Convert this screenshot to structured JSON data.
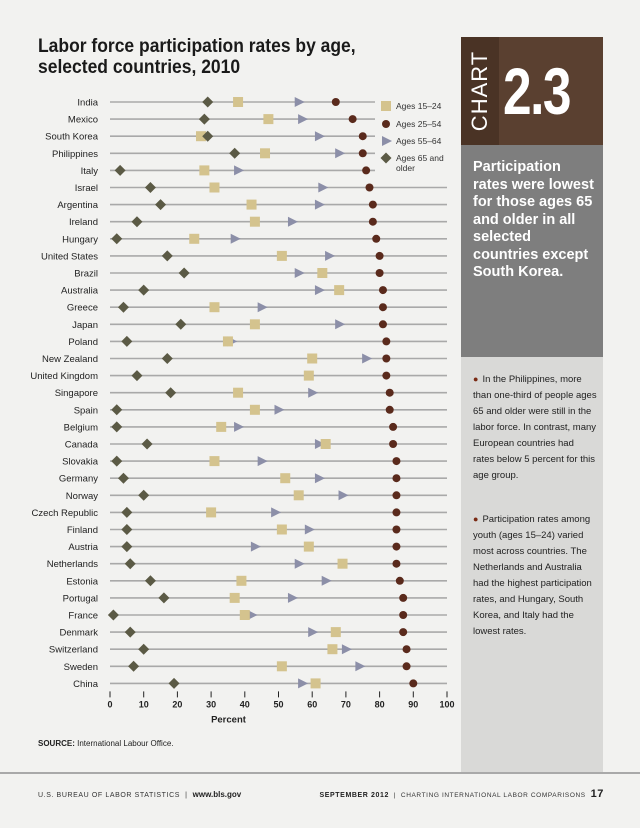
{
  "title": "Labor force participation rates by age, selected countries, 2010",
  "source_label": "SOURCE:",
  "source_text": "International Labour Office.",
  "badge": {
    "word": "CHART",
    "number": "2.3"
  },
  "headline": "Participation rates were lowest for those ages 65 and older in all selected countries except South Korea.",
  "bullets": [
    "In the Philippines, more than one-third of people ages 65 and older were still in the labor force. In contrast, many European countries had rates below 5 percent for this age group.",
    "Participation rates among youth (ages 15–24) varied most across countries. The Netherlands and Australia had the highest participation rates, and Hungary, South Korea, and Italy had the lowest rates."
  ],
  "footer": {
    "agency": "U.S. BUREAU OF LABOR STATISTICS",
    "url": "www.bls.gov",
    "date": "SEPTEMBER 2012",
    "series": "CHARTING INTERNATIONAL LABOR COMPARISONS",
    "page": "17"
  },
  "colors": {
    "ages_15_24": "#d4c38e",
    "ages_25_54": "#5a2a1c",
    "ages_55_64": "#8c8fa8",
    "ages_65_older": "#5b5a45",
    "badge": "#5a4030",
    "headline_bg": "#7e7e7e"
  },
  "chart_data": {
    "type": "scatter",
    "xlabel": "Percent",
    "xlim": [
      0,
      100
    ],
    "xticks": [
      0,
      10,
      20,
      30,
      40,
      50,
      60,
      70,
      80,
      90,
      100
    ],
    "legend_position": "top-right",
    "series": [
      {
        "key": "a1524",
        "name": "Ages 15–24",
        "marker": "square"
      },
      {
        "key": "a2554",
        "name": "Ages 25–54",
        "marker": "circle"
      },
      {
        "key": "a5564",
        "name": "Ages 55–64",
        "marker": "triangle"
      },
      {
        "key": "a65",
        "name": "Ages 65 and older",
        "marker": "diamond"
      }
    ],
    "countries": [
      {
        "name": "India",
        "a1524": 38,
        "a2554": 67,
        "a5564": 56,
        "a65": 29
      },
      {
        "name": "Mexico",
        "a1524": 47,
        "a2554": 72,
        "a5564": 57,
        "a65": 28
      },
      {
        "name": "South Korea",
        "a1524": 27,
        "a2554": 75,
        "a5564": 62,
        "a65": 29
      },
      {
        "name": "Philippines",
        "a1524": 46,
        "a2554": 75,
        "a5564": 68,
        "a65": 37
      },
      {
        "name": "Italy",
        "a1524": 28,
        "a2554": 76,
        "a5564": 38,
        "a65": 3
      },
      {
        "name": "Israel",
        "a1524": 31,
        "a2554": 77,
        "a5564": 63,
        "a65": 12
      },
      {
        "name": "Argentina",
        "a1524": 42,
        "a2554": 78,
        "a5564": 62,
        "a65": 15
      },
      {
        "name": "Ireland",
        "a1524": 43,
        "a2554": 78,
        "a5564": 54,
        "a65": 8
      },
      {
        "name": "Hungary",
        "a1524": 25,
        "a2554": 79,
        "a5564": 37,
        "a65": 2
      },
      {
        "name": "United States",
        "a1524": 51,
        "a2554": 80,
        "a5564": 65,
        "a65": 17
      },
      {
        "name": "Brazil",
        "a1524": 63,
        "a2554": 80,
        "a5564": 56,
        "a65": 22
      },
      {
        "name": "Australia",
        "a1524": 68,
        "a2554": 81,
        "a5564": 62,
        "a65": 10
      },
      {
        "name": "Greece",
        "a1524": 31,
        "a2554": 81,
        "a5564": 45,
        "a65": 4
      },
      {
        "name": "Japan",
        "a1524": 43,
        "a2554": 81,
        "a5564": 68,
        "a65": 21
      },
      {
        "name": "Poland",
        "a1524": 35,
        "a2554": 82,
        "a5564": 36,
        "a65": 5
      },
      {
        "name": "New Zealand",
        "a1524": 60,
        "a2554": 82,
        "a5564": 76,
        "a65": 17
      },
      {
        "name": "United Kingdom",
        "a1524": 59,
        "a2554": 82,
        "a5564": 59,
        "a65": 8
      },
      {
        "name": "Singapore",
        "a1524": 38,
        "a2554": 83,
        "a5564": 60,
        "a65": 18
      },
      {
        "name": "Spain",
        "a1524": 43,
        "a2554": 83,
        "a5564": 50,
        "a65": 2
      },
      {
        "name": "Belgium",
        "a1524": 33,
        "a2554": 84,
        "a5564": 38,
        "a65": 2
      },
      {
        "name": "Canada",
        "a1524": 64,
        "a2554": 84,
        "a5564": 62,
        "a65": 11
      },
      {
        "name": "Slovakia",
        "a1524": 31,
        "a2554": 85,
        "a5564": 45,
        "a65": 2
      },
      {
        "name": "Germany",
        "a1524": 52,
        "a2554": 85,
        "a5564": 62,
        "a65": 4
      },
      {
        "name": "Norway",
        "a1524": 56,
        "a2554": 85,
        "a5564": 69,
        "a65": 10
      },
      {
        "name": "Czech Republic",
        "a1524": 30,
        "a2554": 85,
        "a5564": 49,
        "a65": 5
      },
      {
        "name": "Finland",
        "a1524": 51,
        "a2554": 85,
        "a5564": 59,
        "a65": 5
      },
      {
        "name": "Austria",
        "a1524": 59,
        "a2554": 85,
        "a5564": 43,
        "a65": 5
      },
      {
        "name": "Netherlands",
        "a1524": 69,
        "a2554": 85,
        "a5564": 56,
        "a65": 6
      },
      {
        "name": "Estonia",
        "a1524": 39,
        "a2554": 86,
        "a5564": 64,
        "a65": 12
      },
      {
        "name": "Portugal",
        "a1524": 37,
        "a2554": 87,
        "a5564": 54,
        "a65": 16
      },
      {
        "name": "France",
        "a1524": 40,
        "a2554": 87,
        "a5564": 42,
        "a65": 1
      },
      {
        "name": "Denmark",
        "a1524": 67,
        "a2554": 87,
        "a5564": 60,
        "a65": 6
      },
      {
        "name": "Switzerland",
        "a1524": 66,
        "a2554": 88,
        "a5564": 70,
        "a65": 10
      },
      {
        "name": "Sweden",
        "a1524": 51,
        "a2554": 88,
        "a5564": 74,
        "a65": 7
      },
      {
        "name": "China",
        "a1524": 61,
        "a2554": 90,
        "a5564": 57,
        "a65": 19
      }
    ]
  }
}
